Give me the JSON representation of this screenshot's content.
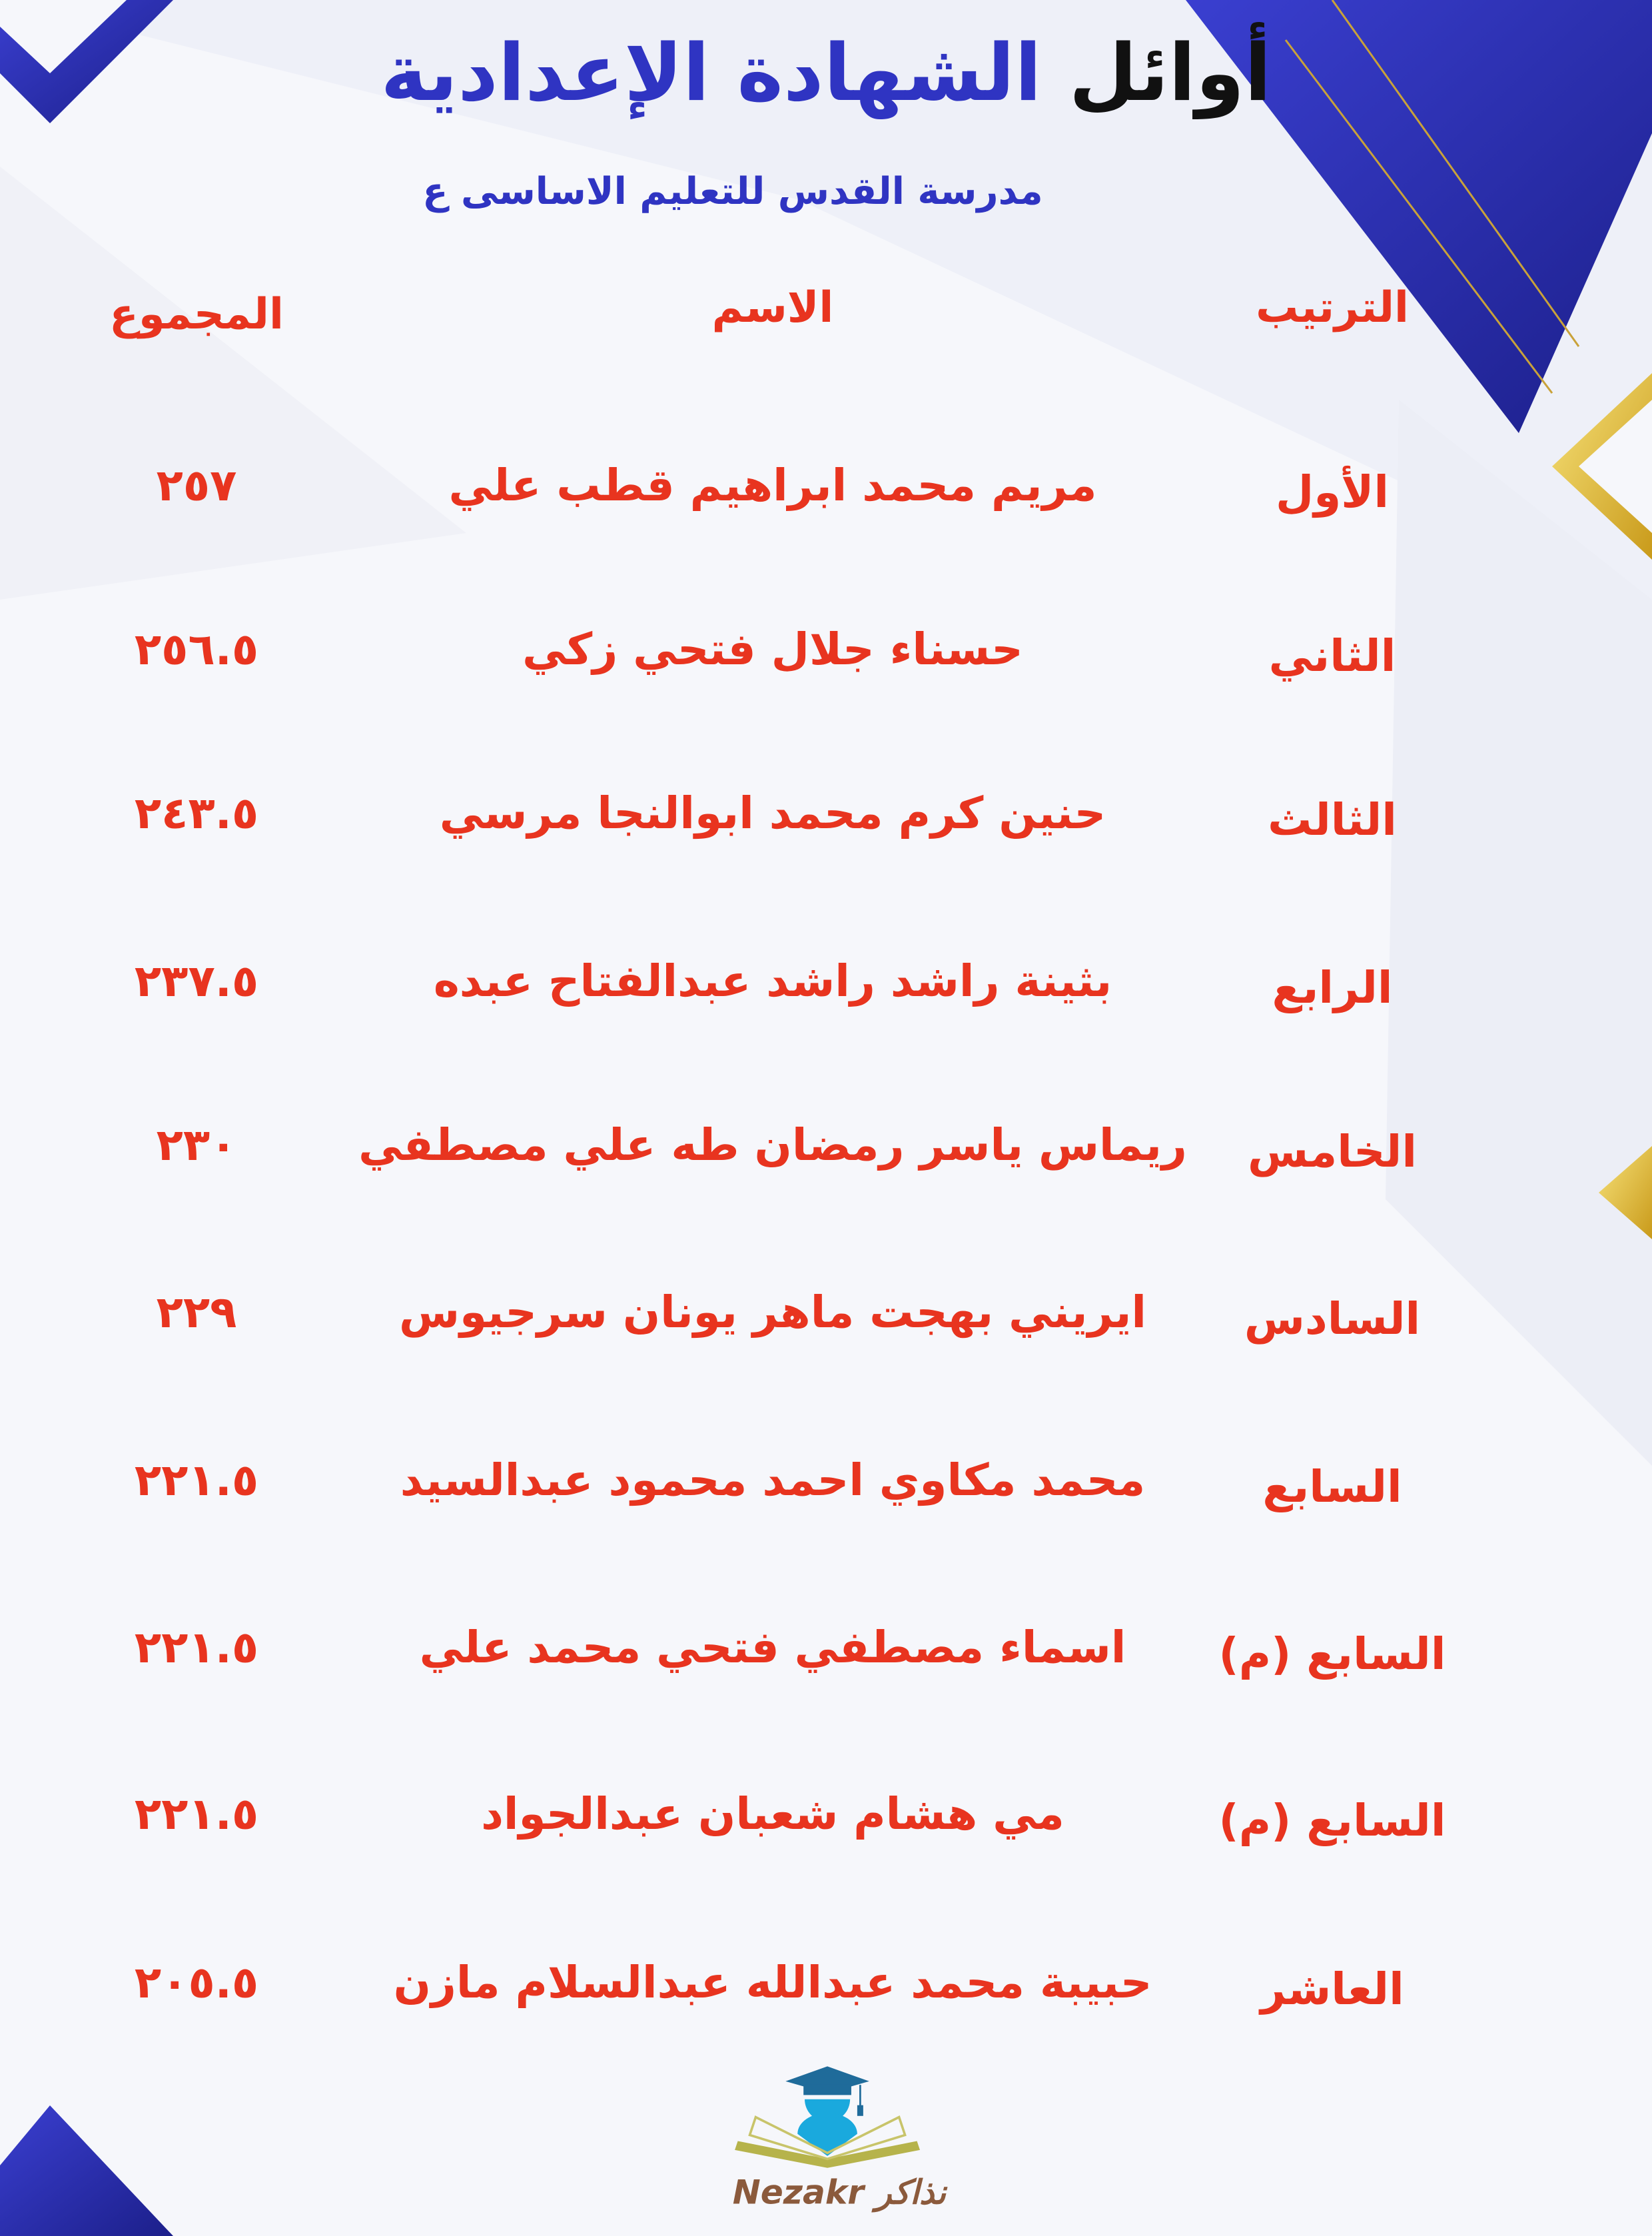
{
  "header": {
    "title_part1": "أوائل",
    "title_part2": "الشهادة الإعدادية",
    "subtitle": "مدرسة القدس للتعليم الاساسى ع"
  },
  "table": {
    "columns": [
      "الترتيب",
      "الاسم",
      "المجموع"
    ],
    "rows": [
      {
        "rank": "الأول",
        "name": "مريم محمد ابراهيم قطب علي",
        "total": "٢٥٧"
      },
      {
        "rank": "الثاني",
        "name": "حسناء جلال فتحي زكي",
        "total": "٢٥٦.٥"
      },
      {
        "rank": "الثالث",
        "name": "حنين كرم محمد ابوالنجا مرسي",
        "total": "٢٤٣.٥"
      },
      {
        "rank": "الرابع",
        "name": "بثينة راشد راشد عبدالفتاح عبده",
        "total": "٢٣٧.٥"
      },
      {
        "rank": "الخامس",
        "name": "ريماس ياسر رمضان طه علي مصطفي",
        "total": "٢٣٠"
      },
      {
        "rank": "السادس",
        "name": "ايريني بهجت ماهر يونان سرجيوس",
        "total": "٢٢٩"
      },
      {
        "rank": "السابع",
        "name": "محمد مكاوي احمد محمود عبدالسيد",
        "total": "٢٢١.٥"
      },
      {
        "rank": "السابع (م)",
        "name": "اسماء مصطفي فتحي محمد علي",
        "total": "٢٢١.٥"
      },
      {
        "rank": "السابع (م)",
        "name": "مي هشام شعبان عبدالجواد",
        "total": "٢٢١.٥"
      },
      {
        "rank": "العاشر",
        "name": "حبيبة محمد عبدالله عبدالسلام مازن",
        "total": "٢٠٥.٥"
      }
    ]
  },
  "logo": {
    "text_en": "Nezakr",
    "text_ar": "نذاكر"
  },
  "colors": {
    "accent_red": "#e8341f",
    "title_blue": "#2f34c2",
    "deco_blue": "#2a2fb8",
    "gold": "#e8c23a"
  }
}
